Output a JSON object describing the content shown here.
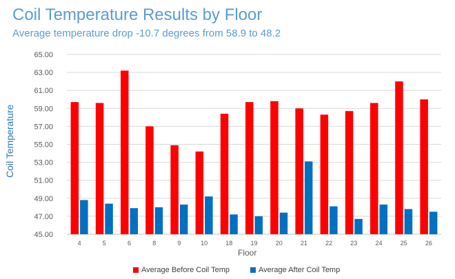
{
  "chart_data": {
    "type": "bar",
    "title": "Coil Temperature Results by Floor",
    "subtitle": "Average temperature drop -10.7 degrees from 58.9 to 48.2",
    "xlabel": "Floor",
    "ylabel": "Coil Temperature",
    "categories": [
      "4",
      "5",
      "6",
      "8",
      "9",
      "10",
      "18",
      "19",
      "20",
      "21",
      "22",
      "23",
      "24",
      "25",
      "26"
    ],
    "series": [
      {
        "name": "Average Before Coil Temp",
        "color": "#ff0000",
        "values": [
          59.7,
          59.6,
          63.2,
          57.0,
          54.9,
          54.2,
          58.4,
          59.7,
          59.8,
          59.0,
          58.3,
          58.7,
          59.6,
          62.0,
          60.0
        ]
      },
      {
        "name": "Average After Coil Temp",
        "color": "#0070c0",
        "values": [
          48.8,
          48.4,
          47.9,
          48.0,
          48.3,
          49.2,
          47.2,
          47.0,
          47.4,
          53.1,
          48.1,
          46.7,
          48.3,
          47.8,
          47.5
        ]
      }
    ],
    "ylim": [
      45.0,
      65.0
    ],
    "yticks": [
      "45.00",
      "47.00",
      "49.00",
      "51.00",
      "53.00",
      "55.00",
      "57.00",
      "59.00",
      "61.00",
      "63.00",
      "65.00"
    ],
    "grid": true,
    "legend_position": "bottom"
  }
}
